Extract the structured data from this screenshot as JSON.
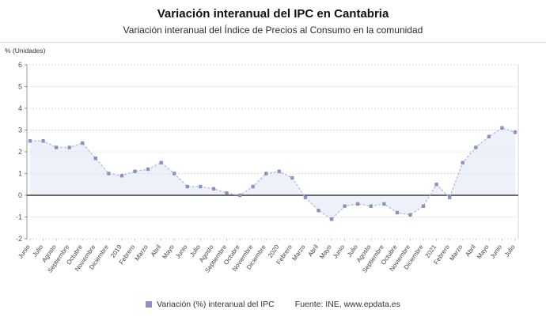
{
  "header": {
    "title": "Variación interanual del IPC en Cantabria",
    "subtitle": "Variación interanual del Índice de Precios al Consumo en la comunidad"
  },
  "footer": {
    "legend_label": "Variación (%) interanual del IPC",
    "source": "Fuente: INE, www.epdata.es"
  },
  "chart_data": {
    "type": "line",
    "title": "Variación interanual del IPC en Cantabria",
    "unit_label": "% (Unidades)",
    "xlabel": "",
    "ylabel": "% (Unidades)",
    "ylim": [
      -2,
      6
    ],
    "yticks": [
      6,
      5,
      4,
      3,
      2,
      1,
      0,
      -1,
      -2
    ],
    "grid": "dotted-horizontal",
    "legend_position": "bottom-center",
    "categories": [
      "Junio",
      "Julio",
      "Agosto",
      "Septiembre",
      "Octubre",
      "Noviembre",
      "Diciembre",
      "2019",
      "Febrero",
      "Marzo",
      "Abril",
      "Mayo",
      "Junio",
      "Julio",
      "Agosto",
      "Septiembre",
      "Octubre",
      "Noviembre",
      "Diciembre",
      "2020",
      "Febrero",
      "Marzo",
      "Abril",
      "Mayo",
      "Junio",
      "Julio",
      "Agosto",
      "Septiembre",
      "Octubre",
      "Noviembre",
      "Diciembre",
      "2021",
      "Febrero",
      "Marzo",
      "Abril",
      "Mayo",
      "Junio",
      "Julio"
    ],
    "series": [
      {
        "name": "Variación (%) interanual del IPC",
        "values": [
          2.5,
          2.5,
          2.2,
          2.2,
          2.4,
          1.7,
          1.0,
          0.9,
          1.1,
          1.2,
          1.5,
          1.0,
          0.4,
          0.4,
          0.3,
          0.1,
          0.0,
          0.4,
          1.0,
          1.1,
          0.8,
          -0.1,
          -0.7,
          -1.1,
          -0.5,
          -0.4,
          -0.5,
          -0.4,
          -0.8,
          -0.9,
          -0.5,
          0.5,
          -0.1,
          1.5,
          2.2,
          2.7,
          3.1,
          2.9
        ]
      }
    ],
    "colors": {
      "line": "#b3bfd9",
      "marker": "#8d92c4",
      "fill": "#e9eef7",
      "zero_axis": "#3a3a3a",
      "grid": "#c6c6c6",
      "axis": "#9a9a9a",
      "text": "#555555"
    }
  }
}
